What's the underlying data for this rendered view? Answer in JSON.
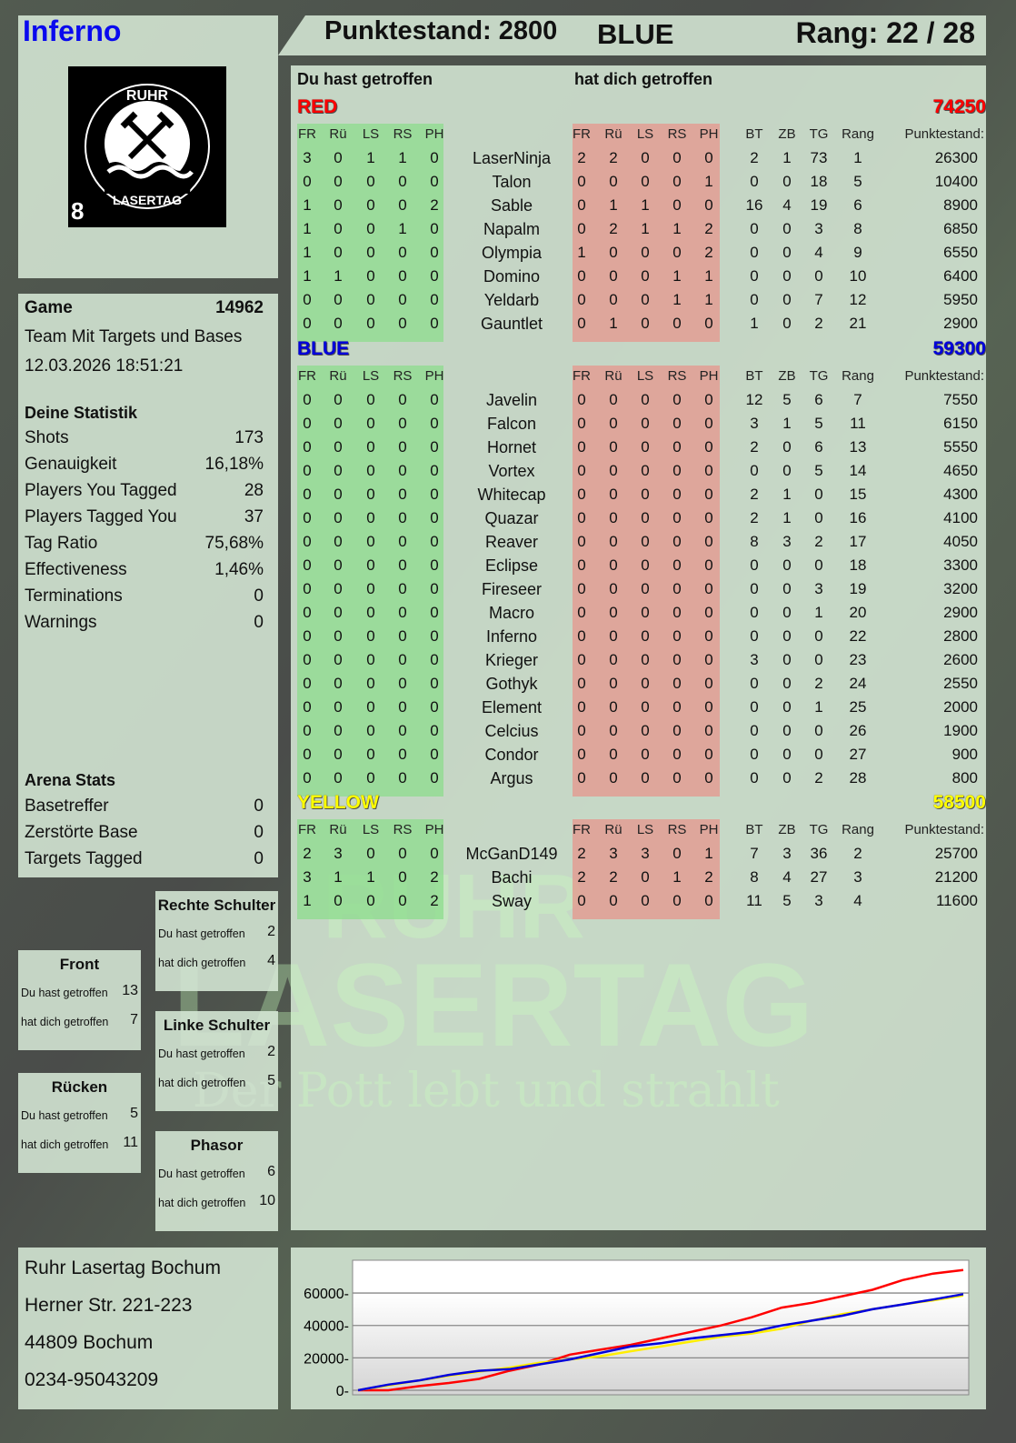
{
  "player": {
    "name": "Inferno",
    "logo_text": "RUHR LASERTAG",
    "logo_number": "8"
  },
  "header": {
    "score_label": "Punktestand: 2800",
    "team": "BLUE",
    "rank_label": "Rang: 22 / 28"
  },
  "game": {
    "label": "Game",
    "id": "14962",
    "mode": "Team Mit Targets und Bases",
    "datetime": "12.03.2026 18:51:21"
  },
  "stats": {
    "title": "Deine Statistik",
    "items": [
      {
        "label": "Shots",
        "value": "173"
      },
      {
        "label": "Genauigkeit",
        "value": "16,18%"
      },
      {
        "label": "Players You Tagged",
        "value": "28"
      },
      {
        "label": "Players Tagged You",
        "value": "37"
      },
      {
        "label": "Tag Ratio",
        "value": "75,68%"
      },
      {
        "label": "Effectiveness",
        "value": "1,46%"
      },
      {
        "label": "Terminations",
        "value": "0"
      },
      {
        "label": "Warnings",
        "value": "0"
      }
    ]
  },
  "arena": {
    "title": "Arena Stats",
    "items": [
      {
        "label": "Basetreffer",
        "value": "0"
      },
      {
        "label": "Zerstörte Base",
        "value": "0"
      },
      {
        "label": "Targets Tagged",
        "value": "0"
      }
    ]
  },
  "hitzones": [
    {
      "title": "Rechte Schulter",
      "you_hit_label": "Du hast getroffen",
      "you_hit": "2",
      "hit_you_label": "hat dich getroffen",
      "hit_you": "4"
    },
    {
      "title": "Front",
      "you_hit_label": "Du hast getroffen",
      "you_hit": "13",
      "hit_you_label": "hat dich getroffen",
      "hit_you": "7"
    },
    {
      "title": "Linke Schulter",
      "you_hit_label": "Du hast getroffen",
      "you_hit": "2",
      "hit_you_label": "hat dich getroffen",
      "hit_you": "5"
    },
    {
      "title": "Rücken",
      "you_hit_label": "Du hast getroffen",
      "you_hit": "5",
      "hit_you_label": "hat dich getroffen",
      "hit_you": "11"
    },
    {
      "title": "Phasor",
      "you_hit_label": "Du hast getroffen",
      "you_hit": "6",
      "hit_you_label": "hat dich getroffen",
      "hit_you": "10"
    }
  ],
  "address": [
    "Ruhr Lasertag Bochum",
    "Herner Str. 221-223",
    "44809 Bochum",
    "0234-95043209"
  ],
  "watermark": {
    "line1": "RUHR",
    "line2": "LASERTAG",
    "slogan": "Der Pott lebt und strahlt"
  },
  "table": {
    "you_hit_title": "Du hast getroffen",
    "hit_you_title": "hat dich getroffen",
    "hit_columns": [
      "FR",
      "Rü",
      "LS",
      "RS",
      "PH"
    ],
    "stat_columns": [
      "BT",
      "ZB",
      "TG",
      "Rang"
    ],
    "score_column": "Punktestand:",
    "teams": [
      {
        "name": "RED",
        "score": "74250",
        "color": "#ff0000",
        "players": [
          [
            "LaserNinja",
            [
              3,
              0,
              1,
              1,
              0
            ],
            [
              2,
              2,
              0,
              0,
              0
            ],
            [
              2,
              1,
              73,
              1
            ],
            "26300"
          ],
          [
            "Talon",
            [
              0,
              0,
              0,
              0,
              0
            ],
            [
              0,
              0,
              0,
              0,
              1
            ],
            [
              0,
              0,
              18,
              5
            ],
            "10400"
          ],
          [
            "Sable",
            [
              1,
              0,
              0,
              0,
              2
            ],
            [
              0,
              1,
              1,
              0,
              0
            ],
            [
              16,
              4,
              19,
              6
            ],
            "8900"
          ],
          [
            "Napalm",
            [
              1,
              0,
              0,
              1,
              0
            ],
            [
              0,
              2,
              1,
              1,
              2
            ],
            [
              0,
              0,
              3,
              8
            ],
            "6850"
          ],
          [
            "Olympia",
            [
              1,
              0,
              0,
              0,
              0
            ],
            [
              1,
              0,
              0,
              0,
              2
            ],
            [
              0,
              0,
              4,
              9
            ],
            "6550"
          ],
          [
            "Domino",
            [
              1,
              1,
              0,
              0,
              0
            ],
            [
              0,
              0,
              0,
              1,
              1
            ],
            [
              0,
              0,
              0,
              10
            ],
            "6400"
          ],
          [
            "Yeldarb",
            [
              0,
              0,
              0,
              0,
              0
            ],
            [
              0,
              0,
              0,
              1,
              1
            ],
            [
              0,
              0,
              7,
              12
            ],
            "5950"
          ],
          [
            "Gauntlet",
            [
              0,
              0,
              0,
              0,
              0
            ],
            [
              0,
              1,
              0,
              0,
              0
            ],
            [
              1,
              0,
              2,
              21
            ],
            "2900"
          ]
        ]
      },
      {
        "name": "BLUE",
        "score": "59300",
        "color": "#0000dd",
        "players": [
          [
            "Javelin",
            [
              0,
              0,
              0,
              0,
              0
            ],
            [
              0,
              0,
              0,
              0,
              0
            ],
            [
              12,
              5,
              6,
              7
            ],
            "7550"
          ],
          [
            "Falcon",
            [
              0,
              0,
              0,
              0,
              0
            ],
            [
              0,
              0,
              0,
              0,
              0
            ],
            [
              3,
              1,
              5,
              11
            ],
            "6150"
          ],
          [
            "Hornet",
            [
              0,
              0,
              0,
              0,
              0
            ],
            [
              0,
              0,
              0,
              0,
              0
            ],
            [
              2,
              0,
              6,
              13
            ],
            "5550"
          ],
          [
            "Vortex",
            [
              0,
              0,
              0,
              0,
              0
            ],
            [
              0,
              0,
              0,
              0,
              0
            ],
            [
              0,
              0,
              5,
              14
            ],
            "4650"
          ],
          [
            "Whitecap",
            [
              0,
              0,
              0,
              0,
              0
            ],
            [
              0,
              0,
              0,
              0,
              0
            ],
            [
              2,
              1,
              0,
              15
            ],
            "4300"
          ],
          [
            "Quazar",
            [
              0,
              0,
              0,
              0,
              0
            ],
            [
              0,
              0,
              0,
              0,
              0
            ],
            [
              2,
              1,
              0,
              16
            ],
            "4100"
          ],
          [
            "Reaver",
            [
              0,
              0,
              0,
              0,
              0
            ],
            [
              0,
              0,
              0,
              0,
              0
            ],
            [
              8,
              3,
              2,
              17
            ],
            "4050"
          ],
          [
            "Eclipse",
            [
              0,
              0,
              0,
              0,
              0
            ],
            [
              0,
              0,
              0,
              0,
              0
            ],
            [
              0,
              0,
              0,
              18
            ],
            "3300"
          ],
          [
            "Fireseer",
            [
              0,
              0,
              0,
              0,
              0
            ],
            [
              0,
              0,
              0,
              0,
              0
            ],
            [
              0,
              0,
              3,
              19
            ],
            "3200"
          ],
          [
            "Macro",
            [
              0,
              0,
              0,
              0,
              0
            ],
            [
              0,
              0,
              0,
              0,
              0
            ],
            [
              0,
              0,
              1,
              20
            ],
            "2900"
          ],
          [
            "Inferno",
            [
              0,
              0,
              0,
              0,
              0
            ],
            [
              0,
              0,
              0,
              0,
              0
            ],
            [
              0,
              0,
              0,
              22
            ],
            "2800"
          ],
          [
            "Krieger",
            [
              0,
              0,
              0,
              0,
              0
            ],
            [
              0,
              0,
              0,
              0,
              0
            ],
            [
              3,
              0,
              0,
              23
            ],
            "2600"
          ],
          [
            "Gothyk",
            [
              0,
              0,
              0,
              0,
              0
            ],
            [
              0,
              0,
              0,
              0,
              0
            ],
            [
              0,
              0,
              2,
              24
            ],
            "2550"
          ],
          [
            "Element",
            [
              0,
              0,
              0,
              0,
              0
            ],
            [
              0,
              0,
              0,
              0,
              0
            ],
            [
              0,
              0,
              1,
              25
            ],
            "2000"
          ],
          [
            "Celcius",
            [
              0,
              0,
              0,
              0,
              0
            ],
            [
              0,
              0,
              0,
              0,
              0
            ],
            [
              0,
              0,
              0,
              26
            ],
            "1900"
          ],
          [
            "Condor",
            [
              0,
              0,
              0,
              0,
              0
            ],
            [
              0,
              0,
              0,
              0,
              0
            ],
            [
              0,
              0,
              0,
              27
            ],
            "900"
          ],
          [
            "Argus",
            [
              0,
              0,
              0,
              0,
              0
            ],
            [
              0,
              0,
              0,
              0,
              0
            ],
            [
              0,
              0,
              2,
              28
            ],
            "800"
          ]
        ]
      },
      {
        "name": "YELLOW",
        "score": "58500",
        "color": "#ffff00",
        "players": [
          [
            "McGanD149",
            [
              2,
              3,
              0,
              0,
              0
            ],
            [
              2,
              3,
              3,
              0,
              1
            ],
            [
              7,
              3,
              36,
              2
            ],
            "25700"
          ],
          [
            "Bachi",
            [
              3,
              1,
              1,
              0,
              2
            ],
            [
              2,
              2,
              0,
              1,
              2
            ],
            [
              8,
              4,
              27,
              3
            ],
            "21200"
          ],
          [
            "Sway",
            [
              1,
              0,
              0,
              0,
              2
            ],
            [
              0,
              0,
              0,
              0,
              0
            ],
            [
              11,
              5,
              3,
              4
            ],
            "11600"
          ]
        ]
      }
    ]
  },
  "chart_data": {
    "type": "line",
    "ylim": [
      0,
      78000
    ],
    "yticks": [
      "0",
      "20000",
      "40000",
      "60000"
    ],
    "grid": true,
    "x": [
      0,
      1,
      2,
      3,
      4,
      5,
      6,
      7,
      8,
      9,
      10,
      11,
      12,
      13,
      14,
      15,
      16,
      17,
      18,
      19,
      20
    ],
    "series": [
      {
        "color": "#ff0000",
        "values": [
          0,
          0,
          2500,
          4500,
          7000,
          12000,
          16000,
          22000,
          25000,
          28000,
          32000,
          36000,
          40000,
          45000,
          51000,
          54000,
          58000,
          62000,
          68000,
          72000,
          74250
        ]
      },
      {
        "color": "#ffee00",
        "values": [
          0,
          3000,
          6000,
          9000,
          11500,
          14000,
          17000,
          19000,
          21000,
          24000,
          27000,
          30000,
          33000,
          35000,
          38000,
          43000,
          47000,
          50000,
          53000,
          55500,
          58500
        ]
      },
      {
        "color": "#0000dd",
        "values": [
          0,
          3500,
          6000,
          9500,
          12000,
          13000,
          16000,
          19000,
          23000,
          27000,
          29000,
          32000,
          34000,
          36000,
          40000,
          43000,
          46000,
          50000,
          53000,
          56000,
          59300
        ]
      }
    ]
  }
}
